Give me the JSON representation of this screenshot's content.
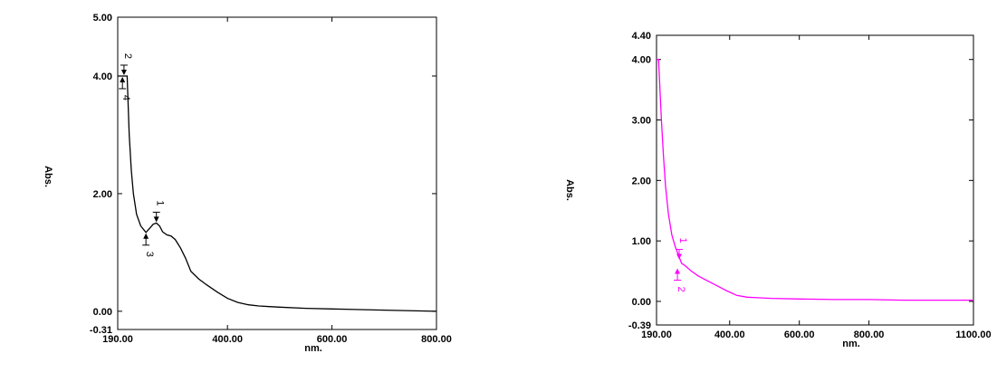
{
  "chart_data": [
    {
      "type": "line",
      "color": "#000000",
      "xlabel": "nm.",
      "ylabel": "Abs.",
      "xlim": [
        190,
        800
      ],
      "ylim": [
        -0.31,
        5.0
      ],
      "x_tick_labels": [
        {
          "value": 190,
          "text": "190.00"
        },
        {
          "value": 400,
          "text": "400.00"
        },
        {
          "value": 600,
          "text": "600.00"
        },
        {
          "value": 800,
          "text": "800.00"
        }
      ],
      "y_tick_labels": [
        {
          "value": 5.0,
          "text": "5.00"
        },
        {
          "value": 4.0,
          "text": "4.00"
        },
        {
          "value": 2.0,
          "text": "2.00"
        },
        {
          "value": 0.0,
          "text": "0.00"
        },
        {
          "value": -0.31,
          "text": "-0.31"
        }
      ],
      "x": [
        190,
        198,
        202,
        208,
        212,
        216,
        220,
        226,
        234,
        244,
        252,
        258,
        264,
        270,
        276,
        284,
        292,
        300,
        310,
        320,
        330,
        345,
        360,
        380,
        400,
        420,
        440,
        460,
        480,
        500,
        550,
        600,
        700,
        800
      ],
      "y": [
        4.0,
        4.0,
        4.0,
        4.0,
        3.0,
        2.4,
        2.0,
        1.65,
        1.45,
        1.34,
        1.42,
        1.48,
        1.5,
        1.45,
        1.35,
        1.3,
        1.28,
        1.22,
        1.08,
        0.9,
        0.68,
        0.55,
        0.45,
        0.33,
        0.22,
        0.15,
        0.11,
        0.09,
        0.08,
        0.07,
        0.05,
        0.04,
        0.02,
        0.0
      ],
      "peaks": [
        {
          "label": "1",
          "x": 264,
          "y": 1.5,
          "side": "above"
        },
        {
          "label": "2",
          "x": 202,
          "y": 4.0,
          "side": "above"
        },
        {
          "label": "3",
          "x": 244,
          "y": 1.34,
          "side": "below"
        },
        {
          "label": "4",
          "x": 199,
          "y": 4.0,
          "side": "below"
        }
      ]
    },
    {
      "type": "line",
      "color": "#ff00ff",
      "xlabel": "nm.",
      "ylabel": "Abs.",
      "xlim": [
        190,
        1100
      ],
      "ylim": [
        -0.39,
        4.4
      ],
      "x_tick_labels": [
        {
          "value": 190,
          "text": "190.00"
        },
        {
          "value": 400,
          "text": "400.00"
        },
        {
          "value": 600,
          "text": "600.00"
        },
        {
          "value": 800,
          "text": "800.00"
        },
        {
          "value": 1100,
          "text": "1100.00"
        }
      ],
      "y_tick_labels": [
        {
          "value": 4.4,
          "text": "4.40"
        },
        {
          "value": 4.0,
          "text": "4.00"
        },
        {
          "value": 3.0,
          "text": "3.00"
        },
        {
          "value": 2.0,
          "text": "2.00"
        },
        {
          "value": 1.0,
          "text": "1.00"
        },
        {
          "value": 0.0,
          "text": "0.00"
        },
        {
          "value": -0.39,
          "text": "-0.39"
        }
      ],
      "x": [
        190,
        196,
        200,
        204,
        210,
        216,
        224,
        234,
        244,
        254,
        262,
        270,
        290,
        310,
        330,
        360,
        390,
        420,
        450,
        480,
        520,
        600,
        700,
        800,
        900,
        1000,
        1100
      ],
      "y": [
        4.0,
        4.0,
        3.5,
        3.0,
        2.4,
        1.9,
        1.45,
        1.1,
        0.9,
        0.75,
        0.63,
        0.6,
        0.5,
        0.42,
        0.36,
        0.27,
        0.18,
        0.1,
        0.07,
        0.06,
        0.05,
        0.04,
        0.03,
        0.03,
        0.02,
        0.02,
        0.02
      ],
      "peaks": [
        {
          "label": "1",
          "x": 255,
          "y": 0.68,
          "side": "above"
        },
        {
          "label": "2",
          "x": 250,
          "y": 0.56,
          "side": "below"
        }
      ]
    }
  ]
}
